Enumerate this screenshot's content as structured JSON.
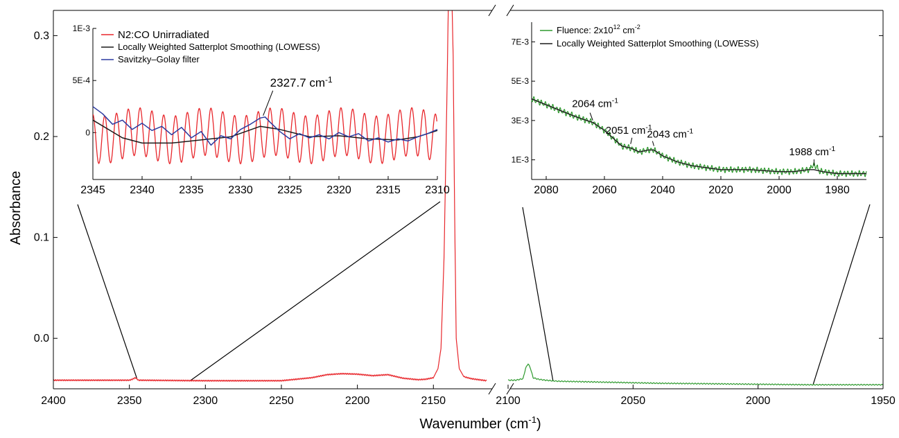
{
  "chart_data": {
    "type": "line",
    "xlabel": "Wavenumber (cm",
    "xlabel_sup": "-1",
    "xlabel_tail": ")",
    "ylabel": "Absorbance",
    "main_left": {
      "xlim": [
        2400,
        2110
      ],
      "ylim": [
        -0.05,
        0.325
      ],
      "xticks": [
        2400,
        2350,
        2300,
        2250,
        2200,
        2150
      ],
      "yticks": [
        -0.0,
        0.1,
        0.2,
        0.3
      ],
      "ytick_labels": [
        "0.0",
        "0.1",
        "0.2",
        "0.3"
      ],
      "series": [
        {
          "name": "N2:CO Unirradiated",
          "color": "#e8262b",
          "x": [
            2400,
            2350,
            2348,
            2346,
            2344,
            2300,
            2250,
            2230,
            2220,
            2210,
            2200,
            2190,
            2180,
            2170,
            2160,
            2155,
            2150,
            2147,
            2145,
            2143,
            2141,
            2140,
            2139,
            2138,
            2137,
            2136,
            2135,
            2133,
            2130,
            2125,
            2120,
            2115
          ],
          "y": [
            -0.0415,
            -0.0415,
            -0.0405,
            -0.039,
            -0.0415,
            -0.042,
            -0.042,
            -0.039,
            -0.036,
            -0.035,
            -0.0355,
            -0.037,
            -0.036,
            -0.0395,
            -0.041,
            -0.0405,
            -0.039,
            -0.03,
            -0.01,
            0.08,
            0.25,
            0.35,
            0.35,
            0.35,
            0.28,
            0.12,
            0.0,
            -0.03,
            -0.038,
            -0.04,
            -0.041,
            -0.042
          ]
        }
      ]
    },
    "main_right": {
      "xlim": [
        2100,
        1950
      ],
      "ylim": [
        -0.05,
        0.325
      ],
      "xticks": [
        2100,
        2050,
        2000,
        1950
      ],
      "series": [
        {
          "name": "Fluence: 2x10^12 cm^-2",
          "color": "#2e9a2e",
          "x": [
            2100,
            2097,
            2094,
            2093,
            2092,
            2091,
            2090,
            2088,
            2085,
            2080,
            2060,
            2040,
            2020,
            2000,
            1980,
            1960,
            1950
          ],
          "y": [
            -0.0415,
            -0.0415,
            -0.04,
            -0.03,
            -0.025,
            -0.03,
            -0.039,
            -0.0405,
            -0.0415,
            -0.0425,
            -0.0435,
            -0.0445,
            -0.045,
            -0.0455,
            -0.046,
            -0.046,
            -0.046
          ]
        }
      ]
    },
    "inset_left": {
      "xlim": [
        2345,
        2310
      ],
      "ylim": [
        -0.00045,
        0.001
      ],
      "xticks": [
        2345,
        2340,
        2335,
        2330,
        2325,
        2320,
        2315,
        2310
      ],
      "yticks": [
        0,
        0.0005,
        0.001
      ],
      "ytick_labels": [
        "0",
        "5E-4",
        "1E-3"
      ],
      "legend": [
        {
          "label": "N2:CO Unirradiated",
          "color": "#e8262b"
        },
        {
          "label": "Locally Weighted Satterplot Smoothing (LOWESS)",
          "color": "#1a1a1a"
        },
        {
          "label": "Savitzky–Golay filter",
          "color": "#2b3aa0"
        }
      ],
      "raw_oscillation": {
        "period_cm": 1.2,
        "amplitude": 0.00023,
        "baseline": -3e-05
      },
      "lowess": {
        "x": [
          2345,
          2342,
          2340,
          2337,
          2334,
          2331,
          2328,
          2326,
          2323,
          2320,
          2317,
          2314,
          2312,
          2310
        ],
        "y": [
          0.00012,
          -5e-05,
          -0.0001,
          -0.0001,
          -7e-05,
          -4e-05,
          6e-05,
          3e-05,
          -4e-05,
          -3e-05,
          -6e-05,
          -7e-05,
          -4e-05,
          2e-05
        ]
      },
      "savgol": {
        "x": [
          2345,
          2344,
          2343,
          2342,
          2341,
          2340,
          2339,
          2338,
          2337,
          2336,
          2335,
          2334,
          2333,
          2332,
          2331,
          2330,
          2329,
          2328,
          2327.5,
          2327,
          2326,
          2325,
          2324,
          2323,
          2322,
          2321,
          2320,
          2319,
          2318,
          2317,
          2316,
          2315,
          2314,
          2313,
          2312,
          2311,
          2310
        ],
        "y": [
          0.00025,
          0.00018,
          8e-05,
          0.00012,
          3e-05,
          9e-05,
          2e-05,
          6e-05,
          -2e-05,
          5e-05,
          -5e-05,
          1e-05,
          -0.00012,
          -3e-05,
          -6e-05,
          3e-05,
          8e-05,
          0.00014,
          0.00015,
          0.0001,
          1e-05,
          -6e-05,
          -1e-05,
          -5e-05,
          -2e-05,
          -6e-05,
          0.0,
          -4e-05,
          -1e-05,
          -8e-05,
          -5e-05,
          -9e-05,
          -6e-05,
          -8e-05,
          -4e-05,
          -1e-05,
          3e-05
        ]
      },
      "annotation": {
        "text": "2327.7 cm",
        "sup": "-1",
        "x": 2327.7,
        "y": 0.00015
      }
    },
    "inset_right": {
      "xlim": [
        2085,
        1970
      ],
      "ylim": [
        0,
        0.008
      ],
      "xticks": [
        2080,
        2060,
        2040,
        2020,
        2000,
        1980
      ],
      "yticks": [
        0.001,
        0.003,
        0.005,
        0.007
      ],
      "ytick_labels": [
        "1E-3",
        "3E-3",
        "5E-3",
        "7E-3"
      ],
      "legend": [
        {
          "label": "Fluence: 2x10",
          "sup": "12",
          "tail": " cm",
          "sup2": "-2",
          "color": "#2e9a2e"
        },
        {
          "label": "Locally Weighted Satterplot Smoothing (LOWESS)",
          "color": "#1a1a1a"
        }
      ],
      "lowess": {
        "x": [
          2085,
          2080,
          2075,
          2070,
          2066,
          2064,
          2060,
          2057,
          2054,
          2051,
          2048,
          2045,
          2043,
          2040,
          2035,
          2030,
          2025,
          2020,
          2010,
          2000,
          1995,
          1990,
          1988,
          1985,
          1980,
          1975,
          1970
        ],
        "y": [
          0.0041,
          0.0038,
          0.0035,
          0.0032,
          0.003,
          0.0029,
          0.0025,
          0.0021,
          0.0017,
          0.0016,
          0.0014,
          0.0015,
          0.0015,
          0.0012,
          0.0009,
          0.0007,
          0.0006,
          0.0005,
          0.0005,
          0.0004,
          0.0004,
          0.0005,
          0.0005,
          0.0004,
          0.0003,
          0.0003,
          0.0003
        ]
      },
      "annotations": [
        {
          "text": "2064 cm",
          "sup": "-1",
          "x": 2064,
          "y": 0.0029
        },
        {
          "text": "2051 cm",
          "sup": "-1",
          "x": 2051,
          "y": 0.0017
        },
        {
          "text": "2043 cm",
          "sup": "-1",
          "x": 2043,
          "y": 0.0016
        },
        {
          "text": "1988 cm",
          "sup": "-1",
          "x": 1988,
          "y": 0.0006
        }
      ]
    }
  }
}
